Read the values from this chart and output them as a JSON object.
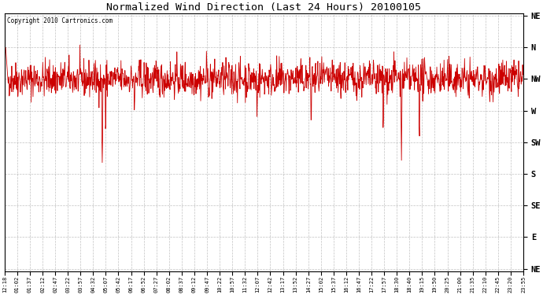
{
  "title": "Normalized Wind Direction (Last 24 Hours) 20100105",
  "copyright_text": "Copyright 2010 Cartronics.com",
  "line_color": "#cc0000",
  "background_color": "#ffffff",
  "plot_bg_color": "#ffffff",
  "grid_color": "#999999",
  "ytick_labels": [
    "NE",
    "N",
    "NW",
    "W",
    "SW",
    "S",
    "SE",
    "E",
    "NE"
  ],
  "ytick_values": [
    1.0,
    0.875,
    0.75,
    0.625,
    0.5,
    0.375,
    0.25,
    0.125,
    0.0
  ],
  "xtick_labels": [
    "12:18",
    "01:02",
    "01:37",
    "02:12",
    "02:47",
    "03:22",
    "03:57",
    "04:32",
    "05:07",
    "05:42",
    "06:17",
    "06:52",
    "07:27",
    "08:02",
    "08:37",
    "09:12",
    "09:47",
    "10:22",
    "10:57",
    "11:32",
    "12:07",
    "12:42",
    "13:17",
    "13:52",
    "14:27",
    "15:02",
    "15:37",
    "16:12",
    "16:47",
    "17:22",
    "17:57",
    "18:30",
    "18:40",
    "19:15",
    "19:50",
    "20:25",
    "21:00",
    "21:35",
    "22:10",
    "22:45",
    "23:20",
    "23:55"
  ],
  "ylim": [
    0.0,
    1.0
  ],
  "seed": 42,
  "base_level": 0.75,
  "noise_scale": 0.035,
  "n_points": 1440,
  "figsize": [
    6.9,
    3.75
  ],
  "dpi": 100
}
